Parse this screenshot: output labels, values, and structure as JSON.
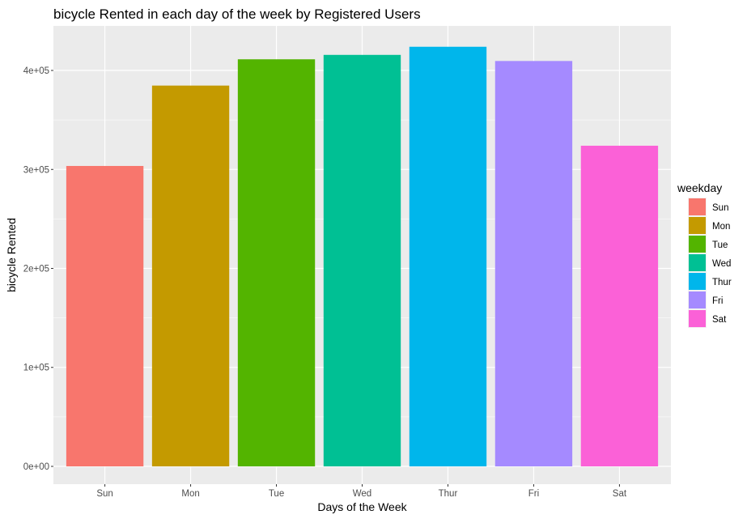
{
  "chart_data": {
    "type": "bar",
    "title": "bicycle Rented in each day of the week by Registered Users",
    "xlabel": "Days of the Week",
    "ylabel": "bicycle Rented",
    "categories": [
      "Sun",
      "Mon",
      "Tue",
      "Wed",
      "Thur",
      "Fri",
      "Sat"
    ],
    "values": [
      303506,
      384719,
      411266,
      415729,
      423935,
      409552,
      323955
    ],
    "colors": [
      "#F8766D",
      "#C49A00",
      "#53B400",
      "#00C094",
      "#00B6EB",
      "#A58AFF",
      "#FB61D7"
    ],
    "ylim": [
      -18000,
      445000
    ],
    "yticks": [
      0,
      100000,
      200000,
      300000,
      400000
    ],
    "ytick_labels": [
      "0e+00",
      "1e+05",
      "2e+05",
      "3e+05",
      "4e+05"
    ],
    "grid": true,
    "legend": {
      "title": "weekday",
      "placement": "right",
      "entries": [
        "Sun",
        "Mon",
        "Tue",
        "Wed",
        "Thur",
        "Fri",
        "Sat"
      ]
    },
    "panel_background": "#EBEBEB",
    "grid_color": "#FFFFFF"
  }
}
